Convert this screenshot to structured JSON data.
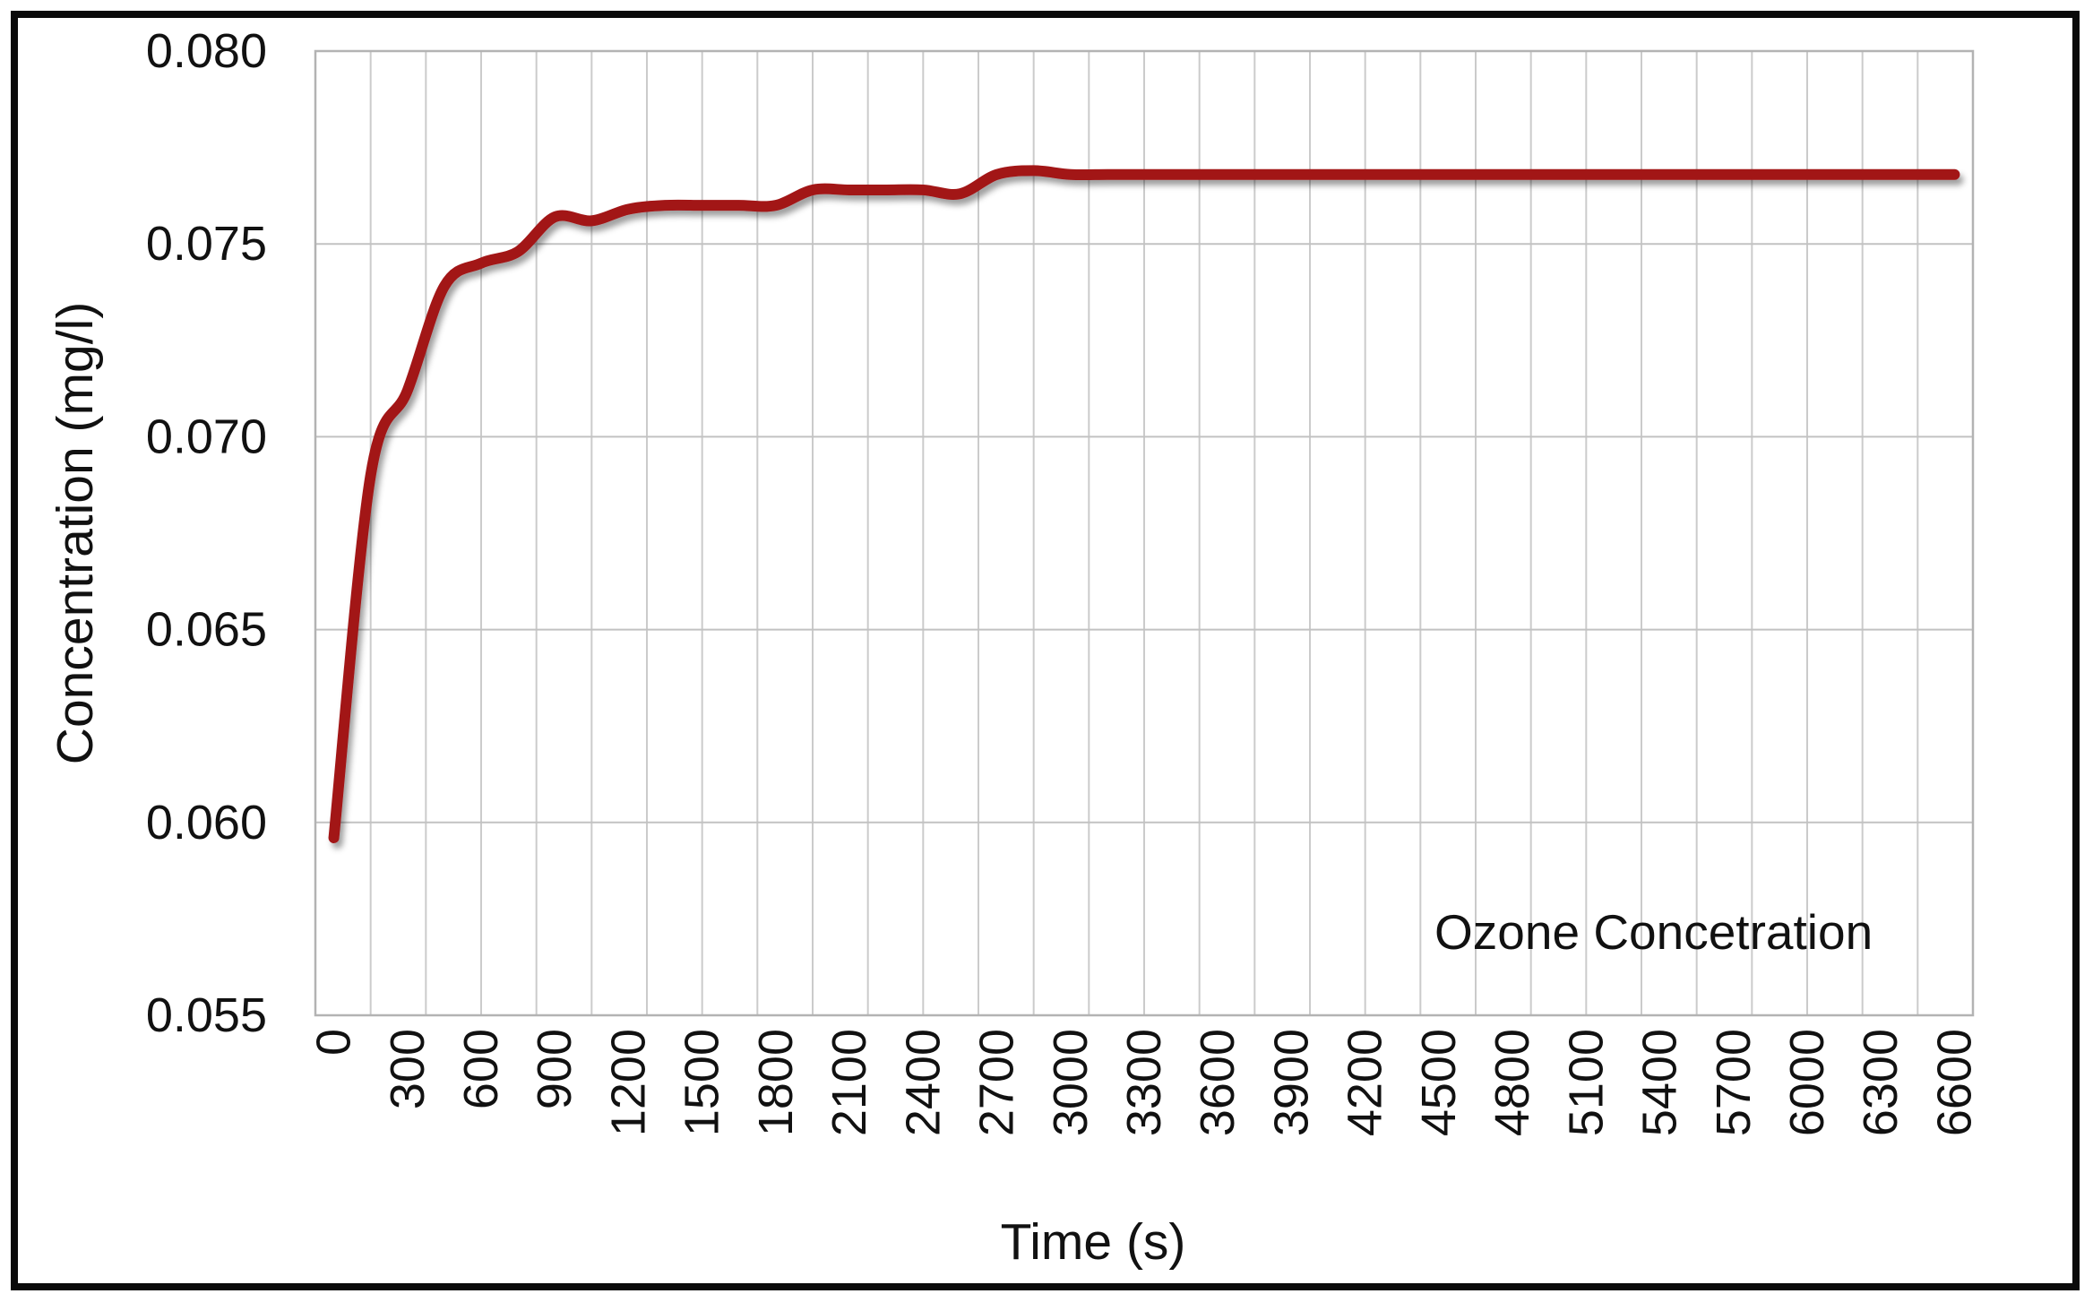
{
  "chart_data": {
    "type": "line",
    "title": "",
    "xlabel": "Time (s)",
    "ylabel": "Concentration (mg/l)",
    "xlim": [
      0,
      6600
    ],
    "ylim": [
      0.055,
      0.08
    ],
    "x_step_between_points": 150,
    "x_tick_labels": [
      "0",
      "300",
      "600",
      "900",
      "1200",
      "1500",
      "1800",
      "2100",
      "2400",
      "2700",
      "3000",
      "3300",
      "3600",
      "3900",
      "4200",
      "4500",
      "4800",
      "5100",
      "5400",
      "5700",
      "6000",
      "6300",
      "6600"
    ],
    "y_tick_labels": [
      "0.055",
      "0.060",
      "0.065",
      "0.070",
      "0.075",
      "0.080"
    ],
    "grid": "both",
    "vertical_grid_intervals": 30,
    "legend_position": "inside-bottom-right",
    "series": [
      {
        "name": "Ozone Concetration",
        "color": "#A21216",
        "x": [
          0,
          150,
          300,
          450,
          600,
          750,
          900,
          1050,
          1200,
          1350,
          1500,
          1650,
          1800,
          1950,
          2100,
          2250,
          2400,
          2550,
          2700,
          2850,
          3000,
          3150,
          3300,
          3450,
          3600,
          3750,
          3900,
          4050,
          4200,
          4350,
          4500,
          4650,
          4800,
          4950,
          5100,
          5250,
          5400,
          5550,
          5700,
          5850,
          6000,
          6150,
          6300,
          6450,
          6600
        ],
        "y": [
          0.0596,
          0.069,
          0.0712,
          0.0739,
          0.0745,
          0.0748,
          0.0757,
          0.0756,
          0.0759,
          0.076,
          0.076,
          0.076,
          0.076,
          0.0764,
          0.0764,
          0.0764,
          0.0764,
          0.0763,
          0.0768,
          0.0769,
          0.0768,
          0.0768,
          0.0768,
          0.0768,
          0.0768,
          0.0768,
          0.0768,
          0.0768,
          0.0768,
          0.0768,
          0.0768,
          0.0768,
          0.0768,
          0.0768,
          0.0768,
          0.0768,
          0.0768,
          0.0768,
          0.0768,
          0.0768,
          0.0768,
          0.0768,
          0.0768,
          0.0768,
          0.0768
        ]
      }
    ]
  },
  "colors": {
    "background": "#FFFFFF",
    "frame_border": "#0A0A0A",
    "grid_vertical": "#CBCBCB",
    "grid_horizontal": "#C2C2C2",
    "plot_border": "#B3B3B3",
    "series_line": "#A21216",
    "text": "#111111"
  }
}
